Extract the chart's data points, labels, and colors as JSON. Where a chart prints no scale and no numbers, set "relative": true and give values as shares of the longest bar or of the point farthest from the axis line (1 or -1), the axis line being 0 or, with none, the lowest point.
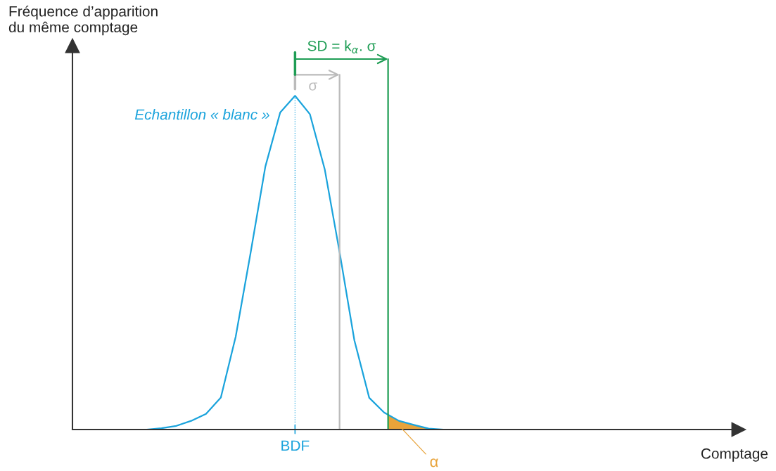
{
  "chart_data": {
    "type": "line",
    "relative": true,
    "xlabel": "Comptage",
    "ylabel": "Fréquence d’apparition\ndu même comptage",
    "categories": [
      null,
      null,
      null,
      null,
      null,
      null,
      null,
      null,
      null,
      null,
      null,
      null,
      null,
      null,
      null,
      null,
      null,
      null,
      null,
      null,
      null,
      null,
      null,
      null,
      null,
      null,
      null,
      null,
      null,
      null,
      null,
      null,
      null,
      null,
      null,
      null,
      null,
      null,
      null,
      null,
      null,
      null,
      null,
      null,
      null
    ],
    "marker": "none",
    "line_style": "solid",
    "series": [
      {
        "name": "Echantillon « blanc »",
        "color": "#1aa3dc",
        "values": [
          null,
          null,
          null,
          null,
          null,
          0,
          0.004,
          0.011,
          0.026,
          0.047,
          0.096,
          0.278,
          0.528,
          0.788,
          0.95,
          1,
          0.945,
          0.78,
          0.532,
          0.267,
          0.095,
          0.051,
          0.026,
          0.014,
          0.003,
          0,
          null,
          null,
          null,
          null,
          null,
          null,
          null,
          null,
          null,
          null,
          null,
          null,
          null,
          null,
          null,
          null,
          null,
          null,
          null
        ]
      }
    ],
    "annotations": [
      "σ",
      "SD = k$_{α}$. σ",
      "α",
      "BDF"
    ]
  }
}
